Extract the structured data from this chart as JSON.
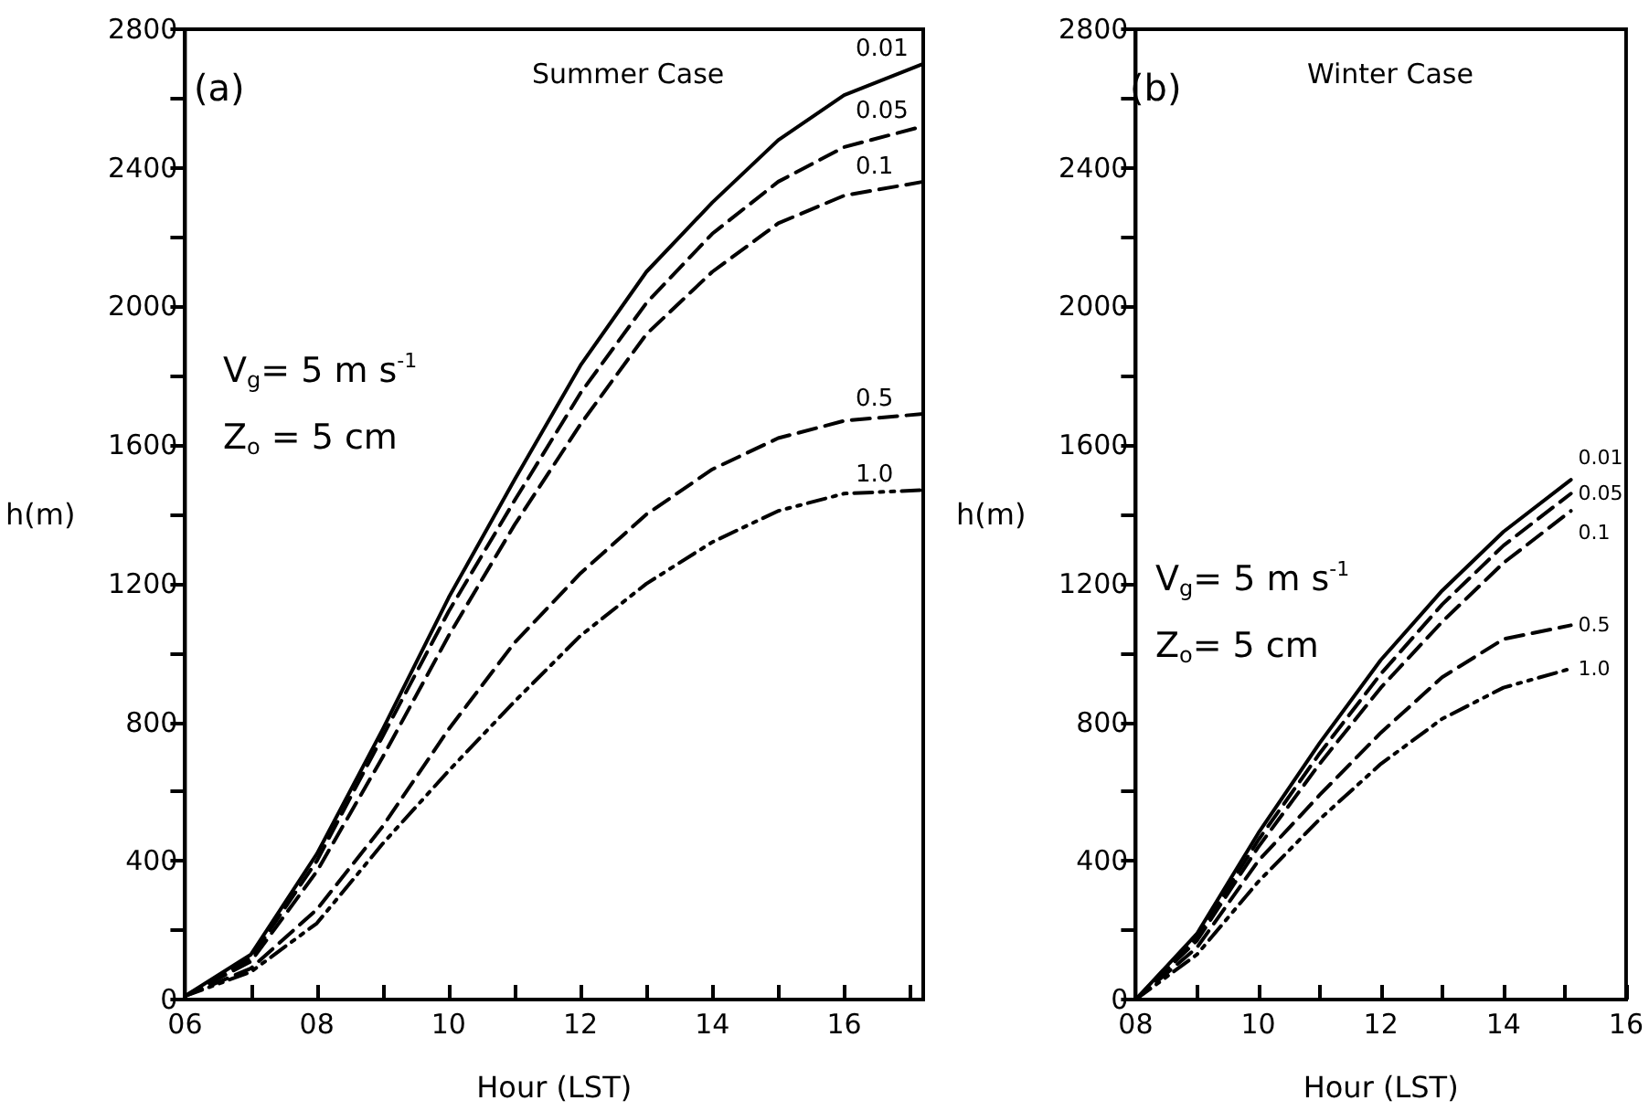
{
  "chart_data": [
    {
      "type": "line",
      "title": "Summer Case",
      "xlabel": "Hour (LST)",
      "ylabel": "h(m)",
      "annotations": [
        "(a)",
        "V$_{g}$= 5 m s$^{-1}$",
        "Z$_{o}$ = 5 cm"
      ],
      "x": [
        6,
        7,
        8,
        9,
        10,
        11,
        12,
        13,
        14,
        15,
        16,
        17.2
      ],
      "series": [
        {
          "name": "0.01",
          "color": "#000000",
          "line_style": "solid",
          "values": [
            10,
            130,
            420,
            780,
            1160,
            1500,
            1830,
            2100,
            2300,
            2480,
            2610,
            2700
          ]
        },
        {
          "name": "0.05",
          "color": "#000000",
          "line_style": "dashed",
          "values": [
            10,
            120,
            400,
            760,
            1120,
            1440,
            1750,
            2010,
            2210,
            2360,
            2460,
            2520
          ]
        },
        {
          "name": "0.1",
          "color": "#000000",
          "line_style": "dashed",
          "values": [
            10,
            110,
            370,
            700,
            1050,
            1370,
            1660,
            1920,
            2100,
            2240,
            2320,
            2360
          ]
        },
        {
          "name": "0.5",
          "color": "#000000",
          "line_style": "dashed",
          "values": [
            10,
            90,
            260,
            500,
            780,
            1030,
            1230,
            1400,
            1530,
            1620,
            1670,
            1690
          ]
        },
        {
          "name": "1.0",
          "color": "#000000",
          "line_style": "dotted",
          "values": [
            10,
            80,
            220,
            450,
            660,
            860,
            1050,
            1200,
            1320,
            1410,
            1460,
            1470
          ]
        }
      ],
      "xlim": [
        6,
        17.2
      ],
      "xticks": [
        {
          "value": 6,
          "label": "06"
        },
        {
          "value": 7,
          "label": null
        },
        {
          "value": 8,
          "label": "08"
        },
        {
          "value": 9,
          "label": null
        },
        {
          "value": 10,
          "label": "10"
        },
        {
          "value": 11,
          "label": null
        },
        {
          "value": 12,
          "label": "12"
        },
        {
          "value": 13,
          "label": null
        },
        {
          "value": 14,
          "label": "14"
        },
        {
          "value": 15,
          "label": null
        },
        {
          "value": 16,
          "label": "16"
        },
        {
          "value": 17,
          "label": null
        }
      ],
      "ylim": [
        0,
        2800
      ],
      "yticks": [
        0,
        {
          "value": 200,
          "label": null
        },
        400,
        {
          "value": 600,
          "label": null
        },
        800,
        {
          "value": 1000,
          "label": null
        },
        1200,
        {
          "value": 1400,
          "label": null
        },
        1600,
        {
          "value": 1800,
          "label": null
        },
        2000,
        {
          "value": 2200,
          "label": null
        },
        2400,
        {
          "value": 2600,
          "label": null
        },
        2800
      ],
      "grid": false,
      "legend": false,
      "marker": "none"
    },
    {
      "type": "line",
      "title": "Winter Case",
      "xlabel": "Hour (LST)",
      "ylabel": "h(m)",
      "annotations": [
        "(b)",
        "V$_{g}$= 5 m s$^{-1}$",
        "Z$_{o}$= 5 cm"
      ],
      "x": [
        8,
        9,
        10,
        11,
        12,
        13,
        14,
        15.1
      ],
      "series": [
        {
          "name": "0.01",
          "color": "#000000",
          "line_style": "solid",
          "values": [
            0,
            190,
            480,
            740,
            980,
            1180,
            1350,
            1500
          ]
        },
        {
          "name": "0.05",
          "color": "#000000",
          "line_style": "dashed",
          "values": [
            0,
            180,
            460,
            710,
            940,
            1140,
            1310,
            1460
          ]
        },
        {
          "name": "0.1",
          "color": "#000000",
          "line_style": "dashed",
          "values": [
            0,
            170,
            440,
            680,
            900,
            1090,
            1260,
            1410
          ]
        },
        {
          "name": "0.5",
          "color": "#000000",
          "line_style": "dashed",
          "values": [
            0,
            150,
            400,
            590,
            770,
            930,
            1040,
            1080
          ]
        },
        {
          "name": "1.0",
          "color": "#000000",
          "line_style": "dotted",
          "values": [
            0,
            130,
            340,
            520,
            680,
            810,
            900,
            955
          ]
        }
      ],
      "xlim": [
        8,
        16
      ],
      "xticks": [
        {
          "value": 8,
          "label": "08"
        },
        {
          "value": 9,
          "label": null
        },
        {
          "value": 10,
          "label": "10"
        },
        {
          "value": 11,
          "label": null
        },
        {
          "value": 12,
          "label": "12"
        },
        {
          "value": 13,
          "label": null
        },
        {
          "value": 14,
          "label": "14"
        },
        {
          "value": 15,
          "label": null
        },
        {
          "value": 16,
          "label": "16"
        }
      ],
      "ylim": [
        0,
        2800
      ],
      "yticks": [
        0,
        {
          "value": 200,
          "label": null
        },
        400,
        {
          "value": 600,
          "label": null
        },
        800,
        {
          "value": 1000,
          "label": null
        },
        1200,
        {
          "value": 1400,
          "label": null
        },
        1600,
        {
          "value": 1800,
          "label": null
        },
        2000,
        {
          "value": 2200,
          "label": null
        },
        2400,
        {
          "value": 2600,
          "label": null
        },
        2800
      ],
      "grid": false,
      "legend": false,
      "marker": "none"
    }
  ]
}
